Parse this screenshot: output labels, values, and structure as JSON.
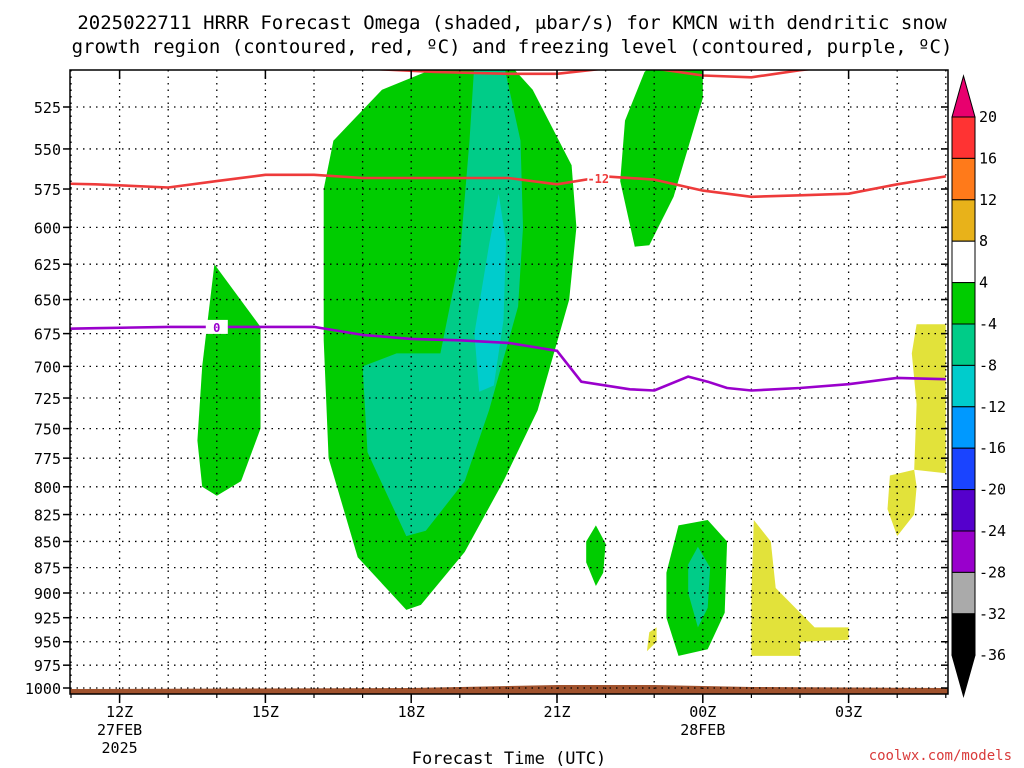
{
  "title_line1": "2025022711 HRRR Forecast Omega (shaded, μbar/s) for KMCN with dendritic snow",
  "title_line2": "growth region (contoured, red, ºC) and freezing level (contoured, purple, ºC)",
  "credit": "coolwx.com/models",
  "chart_data": {
    "type": "heatmap",
    "title": "2025022711 HRRR Forecast Omega (shaded, μbar/s) for KMCN with dendritic snow growth region (contoured, red, ºC) and freezing level (contoured, purple, ºC)",
    "xlabel": "Forecast Time (UTC)",
    "ylabel": "",
    "x_unit": "forecast hour from 2025-02-27 11Z",
    "xlim": [
      0,
      18
    ],
    "y_scale": "log",
    "ylim": [
      500,
      1000
    ],
    "x_ticks": [
      {
        "x": 1,
        "label": "12Z",
        "sub1": "27FEB",
        "sub2": "2025"
      },
      {
        "x": 4,
        "label": "15Z",
        "sub1": "",
        "sub2": ""
      },
      {
        "x": 7,
        "label": "18Z",
        "sub1": "",
        "sub2": ""
      },
      {
        "x": 10,
        "label": "21Z",
        "sub1": "",
        "sub2": ""
      },
      {
        "x": 13,
        "label": "00Z",
        "sub1": "28FEB",
        "sub2": ""
      },
      {
        "x": 16,
        "label": "03Z",
        "sub1": "",
        "sub2": ""
      }
    ],
    "y_ticks": [
      525,
      550,
      575,
      600,
      625,
      650,
      675,
      700,
      725,
      750,
      775,
      800,
      825,
      850,
      875,
      900,
      925,
      950,
      975,
      1000
    ],
    "grid": true,
    "colorbar": {
      "labels": [
        20,
        16,
        12,
        8,
        4,
        -4,
        -8,
        -12,
        -16,
        -20,
        -24,
        -28,
        -32,
        -36
      ],
      "colors": [
        "#e8006e",
        "#ff3333",
        "#ff7a1a",
        "#e8b21a",
        "#ffffff",
        "#00cc00",
        "#00cc88",
        "#00cccc",
        "#0099ff",
        "#1a44ff",
        "#5500cc",
        "#9900cc",
        "#aaaaaa",
        "#000000"
      ]
    },
    "shaded_regions": [
      {
        "level": -4,
        "color": "#00cc00",
        "points": [
          [
            2.7,
            800
          ],
          [
            2.6,
            760
          ],
          [
            2.7,
            700
          ],
          [
            2.95,
            625
          ],
          [
            3.9,
            670
          ],
          [
            3.9,
            750
          ],
          [
            3.5,
            795
          ],
          [
            3.0,
            808
          ]
        ]
      },
      {
        "level": -4,
        "color": "#00cc00",
        "points": [
          [
            6.9,
            917
          ],
          [
            5.9,
            865
          ],
          [
            5.3,
            775
          ],
          [
            5.2,
            680
          ],
          [
            5.2,
            575
          ],
          [
            5.4,
            545
          ],
          [
            6.4,
            515
          ],
          [
            7.75,
            500
          ],
          [
            9.0,
            500
          ],
          [
            9.5,
            515
          ],
          [
            10.3,
            560
          ],
          [
            10.4,
            600
          ],
          [
            10.25,
            650
          ],
          [
            9.6,
            735
          ],
          [
            8.9,
            795
          ],
          [
            8.1,
            860
          ],
          [
            7.2,
            912
          ]
        ]
      },
      {
        "level": -8,
        "color": "#00cc88",
        "points": [
          [
            6.9,
            845
          ],
          [
            6.1,
            770
          ],
          [
            6.0,
            700
          ],
          [
            6.7,
            690
          ],
          [
            7.6,
            690
          ],
          [
            8.0,
            620
          ],
          [
            8.2,
            545
          ],
          [
            8.3,
            500
          ],
          [
            8.9,
            500
          ],
          [
            9.25,
            545
          ],
          [
            9.3,
            600
          ],
          [
            9.2,
            655
          ],
          [
            8.6,
            735
          ],
          [
            8.1,
            795
          ],
          [
            7.3,
            840
          ]
        ]
      },
      {
        "level": -12,
        "color": "#00cccc",
        "points": [
          [
            8.4,
            720
          ],
          [
            8.3,
            675
          ],
          [
            8.6,
            612
          ],
          [
            8.8,
            578
          ],
          [
            8.95,
            610
          ],
          [
            8.9,
            665
          ],
          [
            8.7,
            715
          ]
        ]
      },
      {
        "level": -4,
        "color": "#00cc00",
        "points": [
          [
            11.6,
            613
          ],
          [
            11.3,
            570
          ],
          [
            11.4,
            533
          ],
          [
            11.8,
            505
          ],
          [
            12.0,
            500
          ],
          [
            13.0,
            500
          ],
          [
            13.0,
            520
          ],
          [
            12.4,
            580
          ],
          [
            11.9,
            612
          ]
        ]
      },
      {
        "level": -4,
        "color": "#00cc00",
        "points": [
          [
            10.8,
            893
          ],
          [
            10.6,
            870
          ],
          [
            10.6,
            850
          ],
          [
            10.8,
            835
          ],
          [
            11.0,
            852
          ],
          [
            10.95,
            880
          ]
        ]
      },
      {
        "level": -4,
        "color": "#00cc00",
        "points": [
          [
            12.5,
            965
          ],
          [
            12.25,
            925
          ],
          [
            12.25,
            880
          ],
          [
            12.5,
            835
          ],
          [
            13.1,
            830
          ],
          [
            13.5,
            850
          ],
          [
            13.45,
            920
          ],
          [
            13.1,
            958
          ]
        ]
      },
      {
        "level": -8,
        "color": "#00cc88",
        "points": [
          [
            12.9,
            935
          ],
          [
            12.7,
            900
          ],
          [
            12.7,
            872
          ],
          [
            12.9,
            855
          ],
          [
            13.15,
            875
          ],
          [
            13.1,
            915
          ]
        ]
      },
      {
        "level": 4,
        "color": "#e2e23a",
        "points": [
          [
            11.85,
            960
          ],
          [
            11.9,
            940
          ],
          [
            12.05,
            935
          ],
          [
            12.05,
            950
          ]
        ]
      },
      {
        "level": 4,
        "color": "#e2e23a",
        "points": [
          [
            14.0,
            965
          ],
          [
            14.0,
            900
          ],
          [
            14.05,
            830
          ],
          [
            14.4,
            850
          ],
          [
            14.5,
            895
          ],
          [
            15.3,
            935
          ],
          [
            16.0,
            935
          ],
          [
            16.0,
            948
          ],
          [
            15.0,
            950
          ],
          [
            15.0,
            965
          ]
        ]
      },
      {
        "level": 4,
        "color": "#e2e23a",
        "points": [
          [
            17.0,
            845
          ],
          [
            16.8,
            820
          ],
          [
            16.85,
            790
          ],
          [
            17.35,
            785
          ],
          [
            17.4,
            800
          ],
          [
            17.35,
            825
          ]
        ]
      },
      {
        "level": 4,
        "color": "#e2e23a",
        "points": [
          [
            17.35,
            785
          ],
          [
            17.4,
            730
          ],
          [
            17.3,
            690
          ],
          [
            17.4,
            668
          ],
          [
            18.0,
            668
          ],
          [
            18.0,
            788
          ]
        ]
      }
    ],
    "contours": [
      {
        "name": "-12",
        "color": "#ee3b3b",
        "points": [
          [
            -1,
            571
          ],
          [
            0.5,
            572
          ],
          [
            2.0,
            574
          ],
          [
            3.0,
            570
          ],
          [
            4.0,
            566
          ],
          [
            5.0,
            566
          ],
          [
            6.0,
            568
          ],
          [
            7.0,
            568
          ],
          [
            8.0,
            568
          ],
          [
            9.0,
            568
          ],
          [
            10.0,
            572
          ],
          [
            11.0,
            567
          ],
          [
            12.0,
            569
          ],
          [
            13.0,
            576
          ],
          [
            14.0,
            580
          ],
          [
            15.0,
            579
          ],
          [
            16.0,
            578
          ],
          [
            17.0,
            572
          ],
          [
            18.0,
            567
          ]
        ],
        "label": "-12",
        "label_at": [
          10.85,
          568
        ]
      },
      {
        "name": "-16",
        "color": "#ee3b3b",
        "points": [
          [
            5.5,
            500
          ],
          [
            6.0,
            503
          ],
          [
            7.5,
            505
          ],
          [
            9.0,
            506
          ],
          [
            10.0,
            506
          ],
          [
            11.0,
            503
          ],
          [
            12.0,
            503
          ],
          [
            13.0,
            507
          ],
          [
            14.0,
            508
          ],
          [
            15.0,
            504
          ],
          [
            16.0,
            501
          ],
          [
            17.0,
            500
          ],
          [
            18.0,
            500
          ]
        ]
      },
      {
        "name": "0",
        "color": "#9a00cc",
        "points": [
          [
            -1,
            672
          ],
          [
            0.5,
            671
          ],
          [
            2.0,
            670
          ],
          [
            3.0,
            670
          ],
          [
            4.0,
            670
          ],
          [
            5.0,
            670
          ],
          [
            6.0,
            676
          ],
          [
            7.0,
            679
          ],
          [
            8.0,
            680
          ],
          [
            9.0,
            682
          ],
          [
            10.0,
            688
          ],
          [
            10.5,
            712
          ],
          [
            11.5,
            718
          ],
          [
            12.0,
            719
          ],
          [
            12.7,
            708
          ],
          [
            13.1,
            712
          ],
          [
            13.5,
            717
          ],
          [
            14.0,
            719
          ],
          [
            15.0,
            717
          ],
          [
            16.0,
            714
          ],
          [
            17.0,
            709
          ],
          [
            18.0,
            710
          ]
        ],
        "label": "0",
        "label_at": [
          3.0,
          670
        ]
      }
    ],
    "ground_fill": {
      "color": "#a0522d"
    }
  }
}
